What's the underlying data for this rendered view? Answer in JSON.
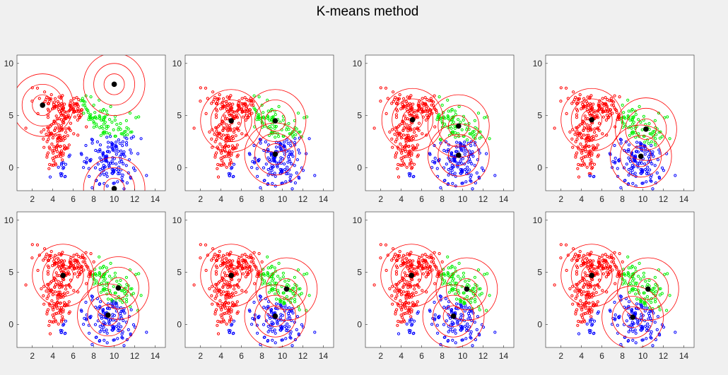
{
  "title": "K-means method",
  "colors": {
    "cluster1": "#ff0000",
    "cluster2": "#00ee00",
    "cluster3": "#0000ff",
    "centroid": "#000000",
    "ring": "#ff0000",
    "axes_bg": "#ffffff",
    "figure_bg": "#f0f0f0"
  },
  "chart_data": {
    "type": "scatter",
    "grid": false,
    "legend": "none",
    "xlim": [
      0.5,
      15
    ],
    "ylim": [
      -2.2,
      10.8
    ],
    "xticks": [
      2,
      4,
      6,
      8,
      10,
      12,
      14
    ],
    "yticks": [
      0,
      5,
      10
    ],
    "ring_radii": [
      1,
      2,
      3
    ],
    "clusters": [
      {
        "n": 150,
        "mean": [
          4.6,
          2.8
        ],
        "sd": [
          0.8,
          2.1
        ]
      },
      {
        "n": 130,
        "mean": [
          6.2,
          5.6
        ],
        "sd": [
          1.7,
          0.7
        ]
      },
      {
        "n": 200,
        "mean": [
          9.8,
          1.3
        ],
        "sd": [
          1.2,
          1.8
        ]
      }
    ],
    "panels": [
      {
        "centroids": [
          [
            3.0,
            6.0
          ],
          [
            10.0,
            8.0
          ],
          [
            10.0,
            -2.0
          ]
        ]
      },
      {
        "centroids": [
          [
            5.0,
            4.5
          ],
          [
            9.3,
            4.5
          ],
          [
            9.3,
            1.3
          ]
        ]
      },
      {
        "centroids": [
          [
            5.1,
            4.6
          ],
          [
            9.6,
            4.0
          ],
          [
            9.6,
            1.2
          ]
        ]
      },
      {
        "centroids": [
          [
            5.0,
            4.6
          ],
          [
            10.3,
            3.7
          ],
          [
            9.8,
            1.1
          ]
        ]
      },
      {
        "centroids": [
          [
            5.0,
            4.7
          ],
          [
            10.4,
            3.5
          ],
          [
            9.4,
            0.9
          ]
        ]
      },
      {
        "centroids": [
          [
            5.0,
            4.7
          ],
          [
            10.4,
            3.4
          ],
          [
            9.3,
            0.8
          ]
        ]
      },
      {
        "centroids": [
          [
            5.0,
            4.7
          ],
          [
            10.4,
            3.4
          ],
          [
            9.1,
            0.8
          ]
        ]
      },
      {
        "centroids": [
          [
            5.0,
            4.7
          ],
          [
            10.5,
            3.4
          ],
          [
            9.0,
            0.7
          ]
        ]
      }
    ]
  }
}
